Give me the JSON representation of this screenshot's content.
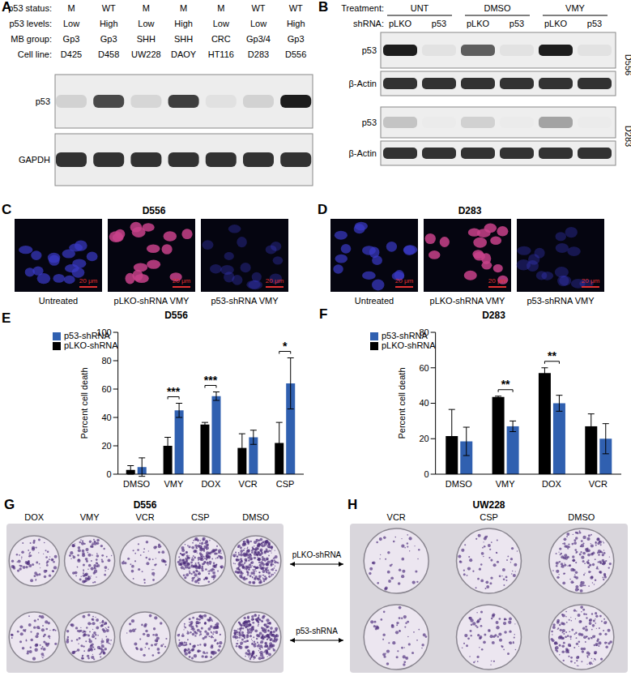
{
  "panels": {
    "A": {
      "label": "A",
      "row_headers": [
        "p53 status:",
        "p53 levels:",
        "MB group:",
        "Cell line:"
      ],
      "columns": [
        [
          "M",
          "Low",
          "Gp3",
          "D425"
        ],
        [
          "WT",
          "High",
          "Gp3",
          "D458"
        ],
        [
          "M",
          "Low",
          "SHH",
          "UW228"
        ],
        [
          "M",
          "High",
          "SHH",
          "DAOY"
        ],
        [
          "M",
          "Low",
          "CRC",
          "HT116"
        ],
        [
          "WT",
          "Low",
          "Gp3/4",
          "D283"
        ],
        [
          "WT",
          "High",
          "Gp3",
          "D556"
        ]
      ],
      "blots": [
        "p53",
        "GAPDH"
      ]
    },
    "B": {
      "label": "B",
      "treatment_header": "Treatment:",
      "shrna_header": "shRNA:",
      "treatments": [
        "UNT",
        "DMSO",
        "VMY"
      ],
      "shrnas": [
        "pLKO",
        "p53"
      ],
      "blots": [
        "p53",
        "β-Actin",
        "p53",
        "β-Actin"
      ],
      "cell_lines": [
        "D556",
        "D283"
      ]
    },
    "C": {
      "label": "C",
      "title": "D556",
      "images": [
        "Untreated",
        "pLKO-shRNA VMY",
        "p53-shRNA VMY"
      ],
      "scale_bar": "20 μm"
    },
    "D": {
      "label": "D",
      "title": "D283",
      "images": [
        "Untreated",
        "pLKO-shRNA VMY",
        "p53-shRNA VMY"
      ],
      "scale_bar": "20 μm"
    },
    "E": {
      "label": "E"
    },
    "F": {
      "label": "F"
    },
    "G": {
      "label": "G",
      "title": "D556",
      "treatments": [
        "DOX",
        "VMY",
        "VCR",
        "CSP",
        "DMSO"
      ]
    },
    "H": {
      "label": "H",
      "title": "UW228",
      "treatments": [
        "VCR",
        "CSP",
        "DMSO"
      ]
    },
    "plate_rows": [
      "pLKO-shRNA",
      "p53-shRNA"
    ]
  },
  "chart_data": [
    {
      "type": "bar",
      "title": "D556",
      "y_label": "Percent cell death",
      "categories": [
        "DMSO",
        "VMY",
        "DOX",
        "VCR",
        "CSP"
      ],
      "series": [
        {
          "name": "pLKO-shRNA",
          "color": "#000000",
          "values": [
            3,
            20,
            35,
            18.5,
            22
          ],
          "errors": [
            3,
            6,
            1.5,
            10,
            14.5
          ]
        },
        {
          "name": "p53-shRNA",
          "color": "#3060b0",
          "values": [
            5,
            45,
            55,
            26,
            64
          ],
          "errors": [
            6.5,
            5,
            3,
            5,
            18
          ]
        }
      ],
      "ylim": [
        0,
        100
      ],
      "yticks": [
        0,
        20,
        40,
        60,
        80,
        100
      ],
      "legend": "upper left",
      "annotations": [
        {
          "category": "VMY",
          "label": "***"
        },
        {
          "category": "DOX",
          "label": "***"
        },
        {
          "category": "CSP",
          "label": "*"
        }
      ]
    },
    {
      "type": "bar",
      "title": "D283",
      "y_label": "Percent cell death",
      "categories": [
        "DMSO",
        "VMY",
        "DOX",
        "VCR"
      ],
      "series": [
        {
          "name": "pLKO-shRNA",
          "color": "#000000",
          "values": [
            21.5,
            43.5,
            57,
            27
          ],
          "errors": [
            15,
            0.5,
            3,
            7
          ]
        },
        {
          "name": "p53-shRNA",
          "color": "#3060b0",
          "values": [
            18.5,
            27,
            40,
            20
          ],
          "errors": [
            8,
            3,
            4.5,
            8.5
          ]
        }
      ],
      "ylim": [
        0,
        80
      ],
      "yticks": [
        0,
        20,
        40,
        60,
        80
      ],
      "legend": "upper left",
      "annotations": [
        {
          "category": "VMY",
          "label": "**"
        },
        {
          "category": "DOX",
          "label": "**"
        }
      ]
    }
  ]
}
